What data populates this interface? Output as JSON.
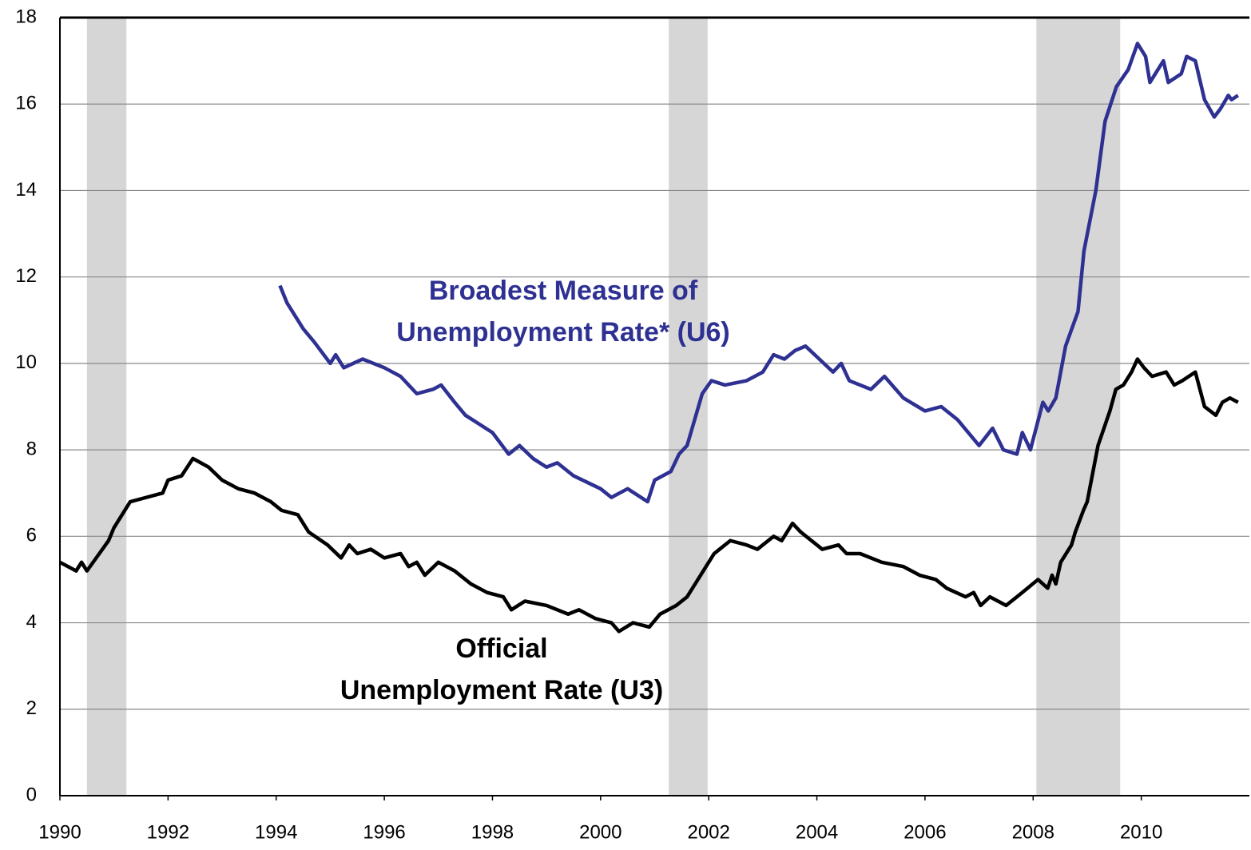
{
  "chart_data": {
    "type": "line",
    "xlim": [
      1990,
      2012
    ],
    "xticks": [
      1990,
      1992,
      1994,
      1996,
      1998,
      2000,
      2002,
      2004,
      2006,
      2008,
      2010
    ],
    "ylim": [
      0,
      18
    ],
    "yticks": [
      0,
      2,
      4,
      6,
      8,
      10,
      12,
      14,
      16,
      18
    ],
    "grid": true,
    "shaded_periods": [
      [
        1990.5,
        1991.23
      ],
      [
        2001.26,
        2001.98
      ],
      [
        2008.06,
        2009.61
      ]
    ],
    "series": [
      {
        "label": [
          "Broadest Measure of",
          "Unemployment Rate* (U6)"
        ],
        "color": "#2e3192",
        "x": [
          1994.07,
          1994.2,
          1994.5,
          1994.7,
          1995.0,
          1995.1,
          1995.25,
          1995.6,
          1996.0,
          1996.3,
          1996.6,
          1996.9,
          1997.05,
          1997.3,
          1997.5,
          1997.75,
          1998.0,
          1998.3,
          1998.5,
          1998.75,
          1999.0,
          1999.2,
          1999.5,
          2000.0,
          2000.2,
          2000.5,
          2000.87,
          2001.0,
          2001.3,
          2001.45,
          2001.6,
          2001.88,
          2002.05,
          2002.3,
          2002.7,
          2003.0,
          2003.2,
          2003.4,
          2003.6,
          2003.79,
          2004.3,
          2004.45,
          2004.6,
          2005.0,
          2005.25,
          2005.6,
          2006.0,
          2006.3,
          2006.6,
          2006.8,
          2007.0,
          2007.25,
          2007.45,
          2007.7,
          2007.8,
          2007.95,
          2008.18,
          2008.28,
          2008.42,
          2008.6,
          2008.83,
          2008.94,
          2009.16,
          2009.33,
          2009.54,
          2009.76,
          2009.93,
          2010.08,
          2010.16,
          2010.41,
          2010.5,
          2010.74,
          2010.84,
          2011.0,
          2011.17,
          2011.35,
          2011.47,
          2011.61,
          2011.67,
          2011.79
        ],
        "values": [
          11.8,
          11.4,
          10.8,
          10.5,
          10.0,
          10.2,
          9.9,
          10.1,
          9.9,
          9.7,
          9.3,
          9.4,
          9.5,
          9.1,
          8.8,
          8.6,
          8.4,
          7.9,
          8.1,
          7.8,
          7.6,
          7.7,
          7.4,
          7.1,
          6.9,
          7.1,
          6.8,
          7.3,
          7.5,
          7.9,
          8.1,
          9.3,
          9.6,
          9.5,
          9.6,
          9.8,
          10.2,
          10.1,
          10.3,
          10.4,
          9.8,
          10.0,
          9.6,
          9.4,
          9.7,
          9.2,
          8.9,
          9.0,
          8.7,
          8.4,
          8.1,
          8.5,
          8.0,
          7.9,
          8.4,
          8.0,
          9.1,
          8.9,
          9.2,
          10.4,
          11.2,
          12.6,
          14.0,
          15.6,
          16.4,
          16.8,
          17.4,
          17.1,
          16.5,
          17.0,
          16.5,
          16.7,
          17.1,
          17.0,
          16.1,
          15.7,
          15.9,
          16.2,
          16.1,
          16.2
        ]
      },
      {
        "label": [
          "Official",
          "Unemployment Rate (U3)"
        ],
        "color": "#000000",
        "x": [
          1990.0,
          1990.3,
          1990.4,
          1990.5,
          1990.9,
          1991.0,
          1991.3,
          1991.6,
          1991.9,
          1992.0,
          1992.25,
          1992.46,
          1992.75,
          1993.0,
          1993.3,
          1993.6,
          1993.9,
          1994.1,
          1994.4,
          1994.6,
          1994.95,
          1995.2,
          1995.35,
          1995.5,
          1995.75,
          1996.0,
          1996.3,
          1996.45,
          1996.6,
          1996.75,
          1997.0,
          1997.3,
          1997.6,
          1997.9,
          1998.2,
          1998.35,
          1998.6,
          1999.0,
          1999.4,
          1999.6,
          1999.9,
          2000.2,
          2000.34,
          2000.6,
          2000.9,
          2001.1,
          2001.4,
          2001.6,
          2001.8,
          2002.1,
          2002.2,
          2002.4,
          2002.7,
          2002.9,
          2003.2,
          2003.35,
          2003.55,
          2003.7,
          2004.1,
          2004.4,
          2004.55,
          2004.8,
          2005.2,
          2005.6,
          2005.9,
          2006.2,
          2006.4,
          2006.75,
          2006.9,
          2007.03,
          2007.2,
          2007.5,
          2007.8,
          2008.09,
          2008.27,
          2008.35,
          2008.42,
          2008.51,
          2008.71,
          2008.78,
          2008.93,
          2009.0,
          2009.2,
          2009.42,
          2009.53,
          2009.67,
          2009.82,
          2009.93,
          2010.05,
          2010.2,
          2010.46,
          2010.61,
          2010.76,
          2011.0,
          2011.17,
          2011.38,
          2011.5,
          2011.64,
          2011.79
        ],
        "values": [
          5.4,
          5.2,
          5.4,
          5.2,
          5.9,
          6.2,
          6.8,
          6.9,
          7.0,
          7.3,
          7.4,
          7.8,
          7.6,
          7.3,
          7.1,
          7.0,
          6.8,
          6.6,
          6.5,
          6.1,
          5.8,
          5.5,
          5.8,
          5.6,
          5.7,
          5.5,
          5.6,
          5.3,
          5.4,
          5.1,
          5.4,
          5.2,
          4.9,
          4.7,
          4.6,
          4.3,
          4.5,
          4.4,
          4.2,
          4.3,
          4.1,
          4.0,
          3.8,
          4.0,
          3.9,
          4.2,
          4.4,
          4.6,
          5.0,
          5.6,
          5.7,
          5.9,
          5.8,
          5.7,
          6.0,
          5.9,
          6.3,
          6.1,
          5.7,
          5.8,
          5.6,
          5.6,
          5.4,
          5.3,
          5.1,
          5.0,
          4.8,
          4.6,
          4.7,
          4.4,
          4.6,
          4.4,
          4.7,
          5.0,
          4.8,
          5.1,
          4.9,
          5.4,
          5.8,
          6.1,
          6.6,
          6.8,
          8.1,
          8.9,
          9.4,
          9.5,
          9.8,
          10.1,
          9.9,
          9.7,
          9.8,
          9.5,
          9.6,
          9.8,
          9.0,
          8.8,
          9.1,
          9.2,
          9.1
        ]
      }
    ]
  }
}
